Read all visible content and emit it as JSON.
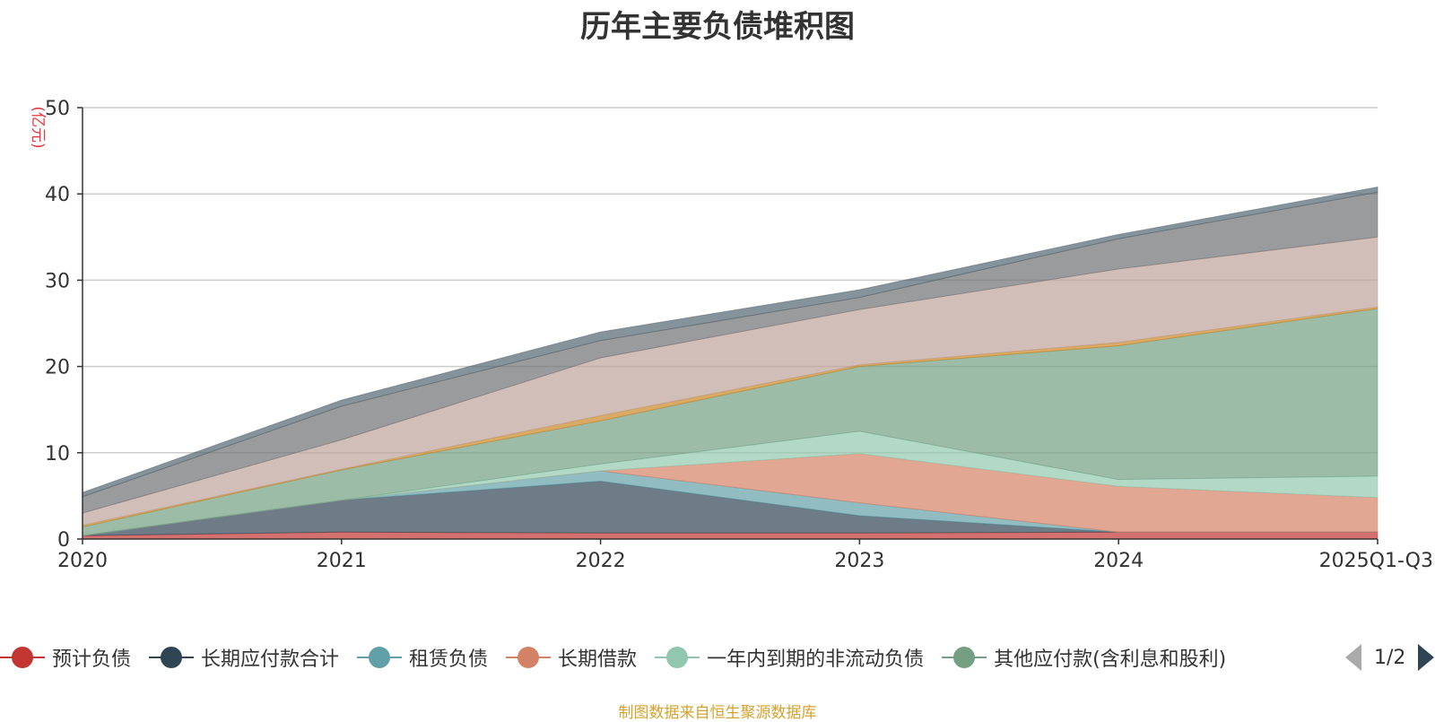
{
  "chart_data": {
    "type": "area",
    "stacked": true,
    "title": "历年主要负债堆积图",
    "unit_label": "(亿元)",
    "source_note": "制图数据来自恒生聚源数据库",
    "categories": [
      "2020",
      "2021",
      "2022",
      "2023",
      "2024",
      "2025Q1-Q3"
    ],
    "y_ticks": [
      "0",
      "10",
      "20",
      "30",
      "40",
      "50"
    ],
    "ylim": [
      0,
      50
    ],
    "grid": true,
    "legend_position": "bottom",
    "legend_page": "1/2",
    "series": [
      {
        "name": "预计负债",
        "color": "#c23531",
        "legend": true,
        "values": [
          0.4,
          0.8,
          0.7,
          0.7,
          0.8,
          0.8
        ]
      },
      {
        "name": "长期应付款合计",
        "color": "#2f4554",
        "legend": true,
        "values": [
          0.0,
          3.7,
          6.0,
          2.0,
          0.0,
          0.0
        ]
      },
      {
        "name": "租赁负债",
        "color": "#61a0a8",
        "legend": true,
        "values": [
          0.0,
          0.0,
          1.2,
          1.5,
          0.0,
          0.0
        ]
      },
      {
        "name": "长期借款",
        "color": "#d48265",
        "legend": true,
        "values": [
          0.0,
          0.0,
          0.0,
          5.7,
          5.3,
          4.0
        ]
      },
      {
        "name": "一年内到期的非流动负债",
        "color": "#91c7ae",
        "legend": true,
        "values": [
          0.0,
          0.0,
          0.8,
          2.6,
          0.8,
          2.5
        ]
      },
      {
        "name": "其他应付款(含利息和股利)",
        "color": "#749f83",
        "legend": true,
        "values": [
          1.0,
          3.5,
          5.0,
          7.5,
          15.5,
          19.4
        ]
      },
      {
        "name": "",
        "color": "#ca8622",
        "legend": false,
        "values": [
          0.2,
          0.1,
          0.6,
          0.2,
          0.4,
          0.2
        ]
      },
      {
        "name": "",
        "color": "#bda29a",
        "legend": false,
        "values": [
          1.4,
          3.4,
          6.7,
          6.4,
          8.5,
          8.1
        ]
      },
      {
        "name": "",
        "color": "#6e7074",
        "legend": false,
        "values": [
          1.9,
          3.9,
          2.0,
          1.4,
          3.5,
          5.2
        ]
      },
      {
        "name": "",
        "color": "#546570",
        "legend": false,
        "values": [
          0.5,
          0.7,
          1.0,
          0.9,
          0.5,
          0.6
        ]
      }
    ]
  }
}
